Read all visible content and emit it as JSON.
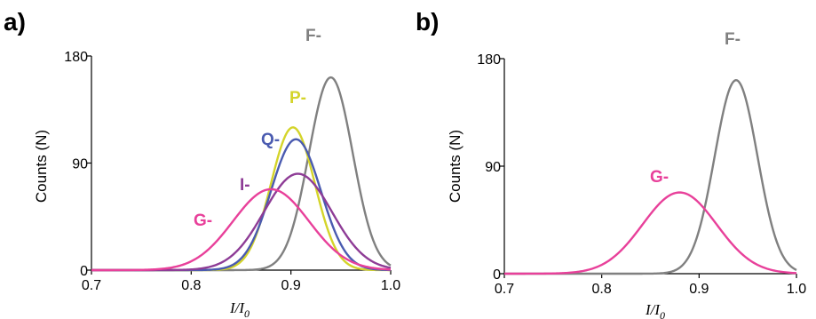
{
  "chart_data": [
    {
      "panel_label": "a)",
      "type": "line",
      "xlabel": "I/I",
      "xlabel_subscript": "0",
      "ylabel": "Counts (N)",
      "xlim": [
        0.7,
        1.0
      ],
      "ylim": [
        0,
        180
      ],
      "x_ticks": [
        "0.7",
        "0.8",
        "0.9",
        "1.0"
      ],
      "y_ticks": [
        "0",
        "90",
        "180"
      ],
      "grid": false,
      "series": [
        {
          "name": "F-",
          "color": "#808080",
          "peak_x": 0.94,
          "peak_y": 162,
          "sigma": 0.022
        },
        {
          "name": "P-",
          "color": "#d4d42a",
          "peak_x": 0.902,
          "peak_y": 120,
          "sigma": 0.022
        },
        {
          "name": "Q-",
          "color": "#4a5bb0",
          "peak_x": 0.905,
          "peak_y": 110,
          "sigma": 0.025
        },
        {
          "name": "I-",
          "color": "#8e3c96",
          "peak_x": 0.907,
          "peak_y": 81,
          "sigma": 0.034
        },
        {
          "name": "G-",
          "color": "#e8409a",
          "peak_x": 0.88,
          "peak_y": 68,
          "sigma": 0.038
        }
      ]
    },
    {
      "panel_label": "b)",
      "type": "line",
      "xlabel": "I/I",
      "xlabel_subscript": "0",
      "ylabel": "Counts (N)",
      "xlim": [
        0.7,
        1.0
      ],
      "ylim": [
        0,
        180
      ],
      "x_ticks": [
        "0.7",
        "0.8",
        "0.9",
        "1.0"
      ],
      "y_ticks": [
        "0",
        "90",
        "180"
      ],
      "grid": false,
      "series": [
        {
          "name": "F-",
          "color": "#808080",
          "peak_x": 0.938,
          "peak_y": 162,
          "sigma": 0.022
        },
        {
          "name": "G-",
          "color": "#e8409a",
          "peak_x": 0.88,
          "peak_y": 68,
          "sigma": 0.038
        }
      ]
    }
  ]
}
